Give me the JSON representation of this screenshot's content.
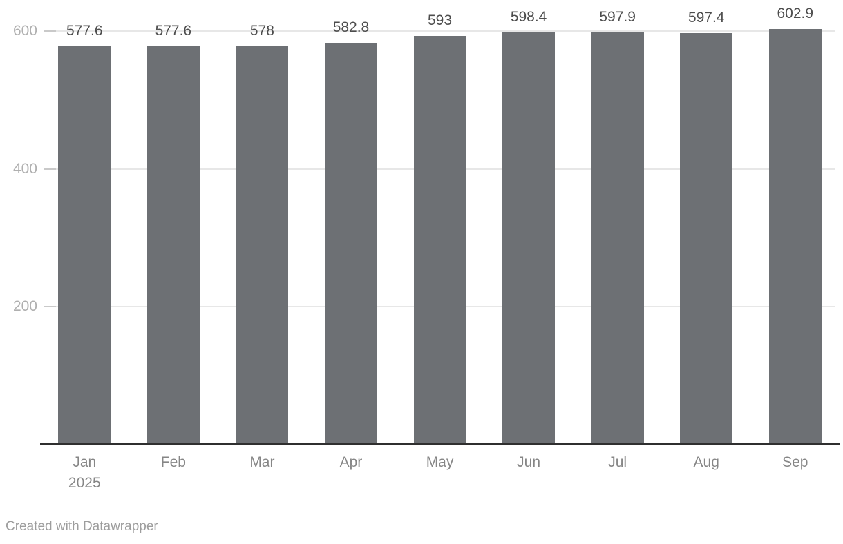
{
  "chart_data": {
    "type": "bar",
    "categories": [
      "Jan",
      "Feb",
      "Mar",
      "Apr",
      "May",
      "Jun",
      "Jul",
      "Aug",
      "Sep"
    ],
    "category_sublabels": [
      "2025",
      "",
      "",
      "",
      "",
      "",
      "",
      "",
      ""
    ],
    "values": [
      577.6,
      577.6,
      578,
      582.8,
      593,
      598.4,
      597.9,
      597.4,
      602.9
    ],
    "value_labels": [
      "577.6",
      "577.6",
      "578",
      "582.8",
      "593",
      "598.4",
      "597.9",
      "597.4",
      "602.9"
    ],
    "title": "",
    "xlabel": "",
    "ylabel": "",
    "ylim": [
      0,
      645
    ],
    "yticks": [
      200,
      400,
      600
    ],
    "grid": "horizontal",
    "legend": "none"
  },
  "colors": {
    "bar": "#6d7074",
    "axis_line": "#2f2f2f",
    "gridline": "#e7e7e7",
    "tick_segment": "#c9c9c9",
    "tick_label": "#afafaf",
    "value_label": "#4d4d4d",
    "month_label": "#868686",
    "credit": "#9d9d9d",
    "background": "#ffffff"
  },
  "footer": {
    "credit": "Created with Datawrapper"
  }
}
